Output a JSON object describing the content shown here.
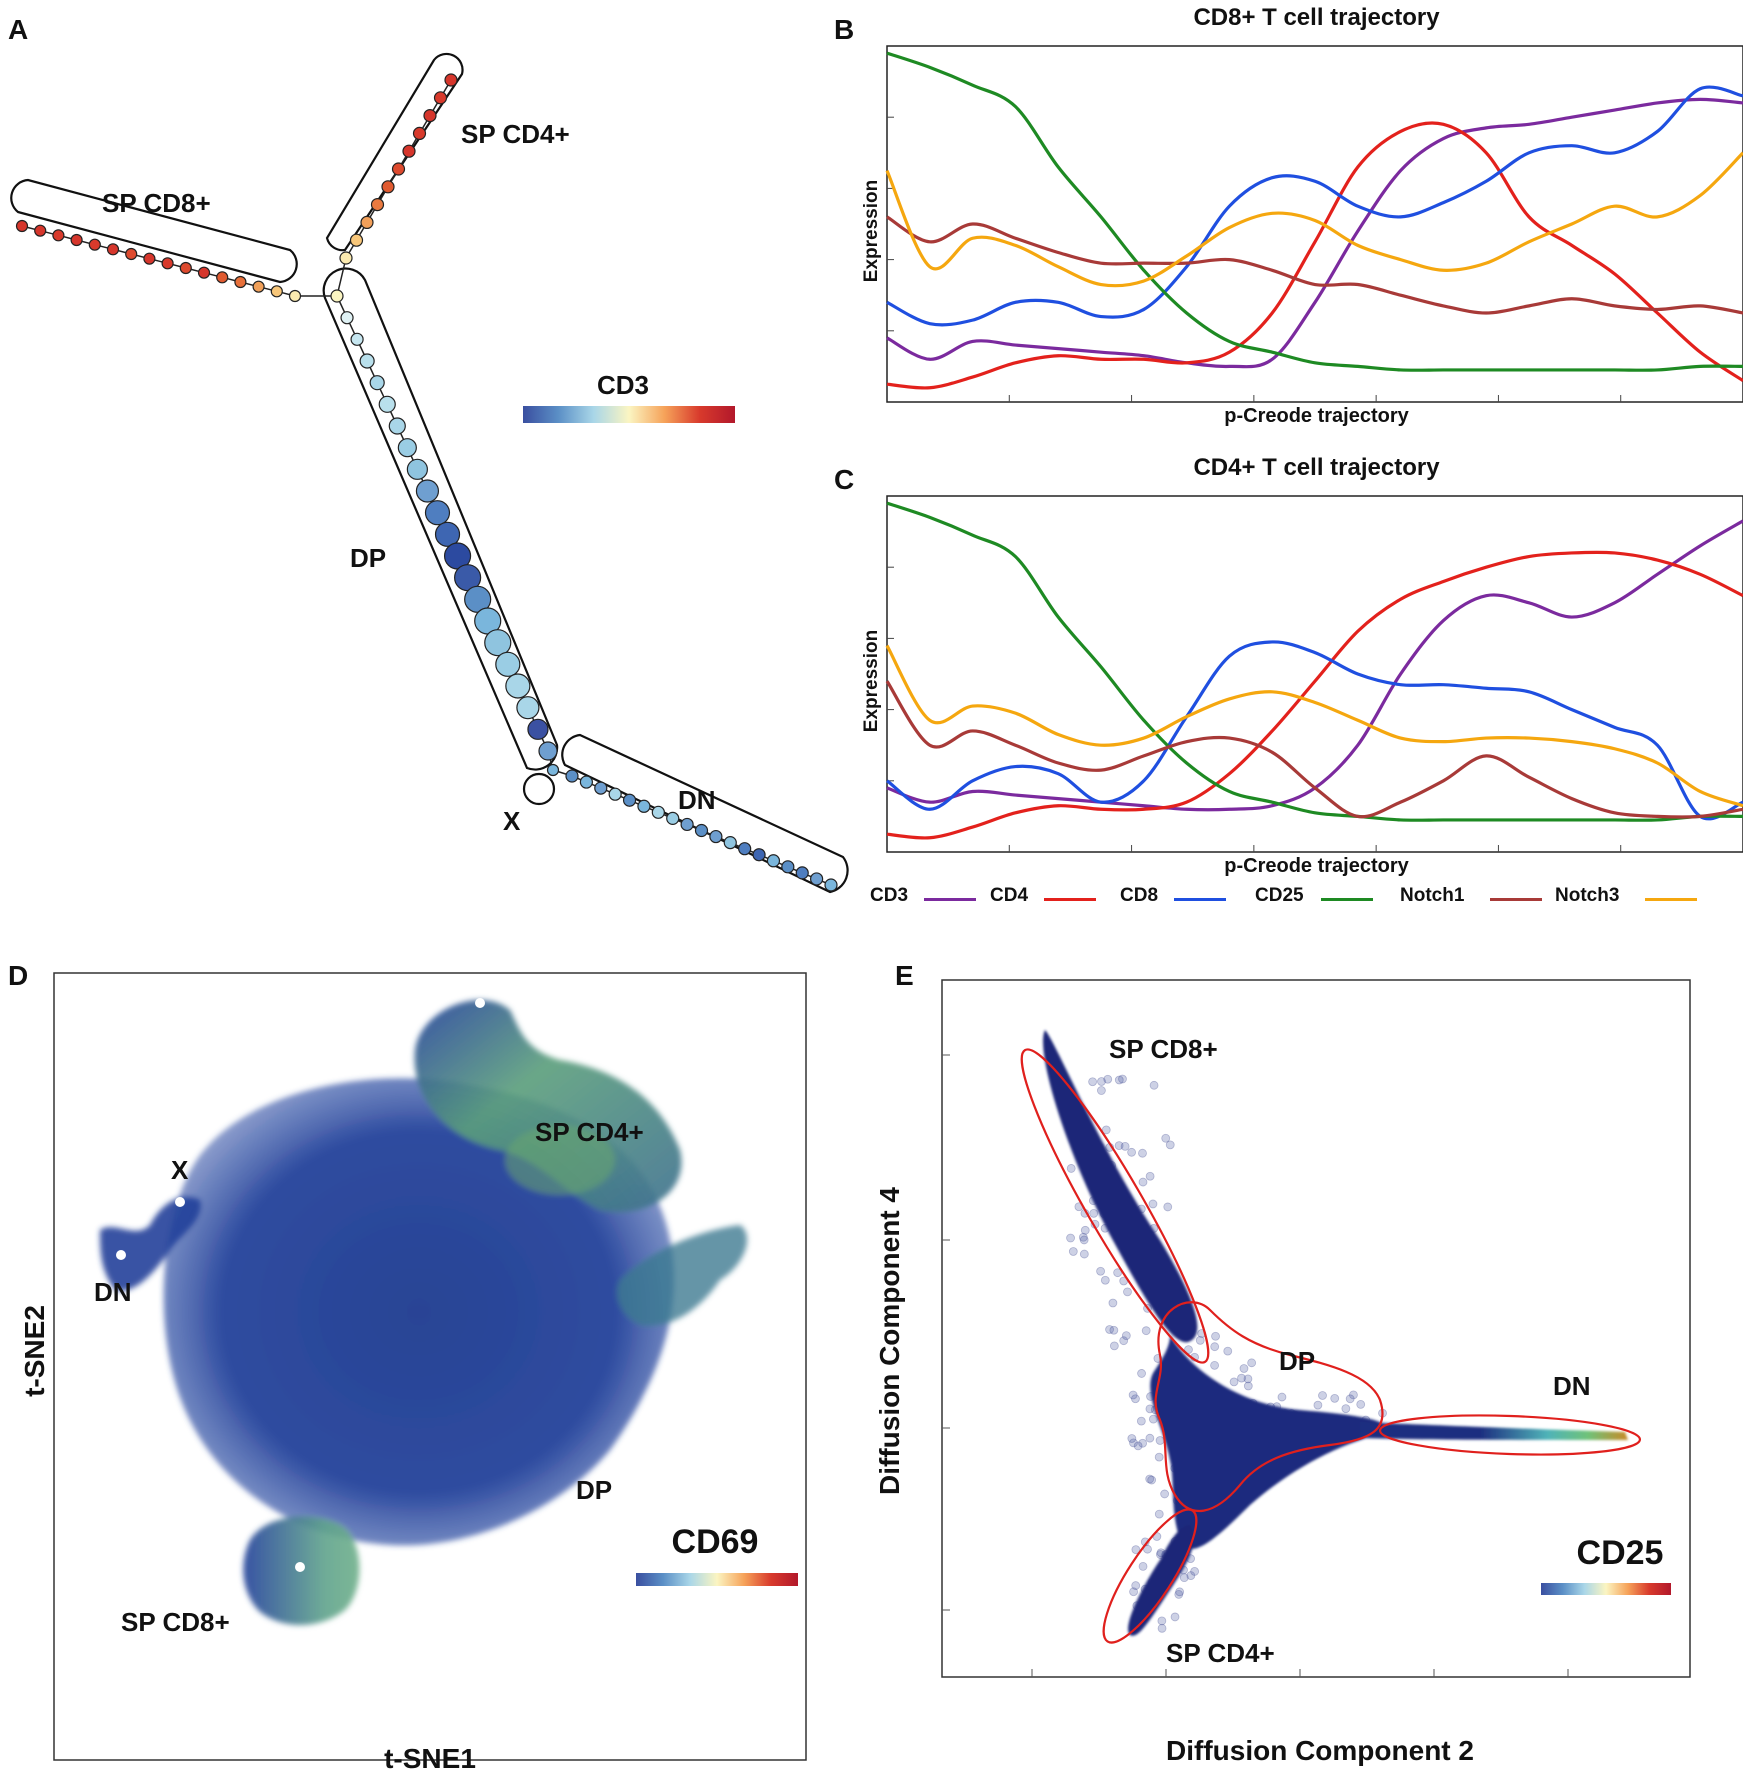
{
  "panels": {
    "A": {
      "letter": "A",
      "branch_labels": {
        "sp_cd8": "SP CD8+",
        "sp_cd4": "SP CD4+",
        "dp": "DP",
        "x": "X",
        "dn": "DN"
      },
      "colorbar_label": "CD3"
    },
    "B": {
      "letter": "B",
      "title": "CD8+ T cell trajectory",
      "xlabel": "p-Creode trajectory",
      "ylabel": "Expression"
    },
    "C": {
      "letter": "C",
      "title": "CD4+ T cell trajectory",
      "xlabel": "p-Creode trajectory",
      "ylabel": "Expression"
    },
    "D": {
      "letter": "D",
      "xlabel": "t-SNE1",
      "ylabel": "t-SNE2",
      "colorbar_label": "CD69",
      "cluster_labels": {
        "sp_cd4": "SP CD4+",
        "x": "X",
        "dn": "DN",
        "dp": "DP",
        "sp_cd8": "SP CD8+"
      }
    },
    "E": {
      "letter": "E",
      "xlabel": "Diffusion Component 2",
      "ylabel": "Diffusion Component 4",
      "colorbar_label": "CD25",
      "cluster_labels": {
        "sp_cd8": "SP CD8+",
        "dp": "DP",
        "dn": "DN",
        "sp_cd4": "SP CD4+"
      }
    }
  },
  "legend": [
    {
      "name": "CD3",
      "color": "#7b2a9e"
    },
    {
      "name": "CD4",
      "color": "#e3211c"
    },
    {
      "name": "CD8",
      "color": "#1f4fe0"
    },
    {
      "name": "CD25",
      "color": "#1e8a23"
    },
    {
      "name": "Notch1",
      "color": "#a83a38"
    },
    {
      "name": "Notch3",
      "color": "#f5a70f"
    }
  ],
  "colormap": [
    "#3a4fa0",
    "#5b8fc6",
    "#a9d6e8",
    "#fbf5c2",
    "#f6a35a",
    "#d83a2c",
    "#b2182b"
  ],
  "chart_data": [
    {
      "type": "line",
      "title": "CD8+ T cell trajectory",
      "xlabel": "p-Creode trajectory",
      "ylabel": "Expression",
      "ylim": [
        0,
        1
      ],
      "x": [
        0,
        0.05,
        0.1,
        0.15,
        0.2,
        0.25,
        0.3,
        0.35,
        0.4,
        0.45,
        0.5,
        0.55,
        0.6,
        0.65,
        0.7,
        0.75,
        0.8,
        0.85,
        0.9,
        0.95,
        1.0
      ],
      "series": [
        {
          "name": "CD3",
          "values": [
            0.18,
            0.12,
            0.17,
            0.16,
            0.15,
            0.14,
            0.13,
            0.11,
            0.1,
            0.12,
            0.28,
            0.48,
            0.65,
            0.74,
            0.77,
            0.78,
            0.8,
            0.82,
            0.84,
            0.85,
            0.84
          ]
        },
        {
          "name": "CD4",
          "values": [
            0.05,
            0.04,
            0.07,
            0.11,
            0.13,
            0.12,
            0.12,
            0.11,
            0.14,
            0.25,
            0.45,
            0.66,
            0.76,
            0.78,
            0.7,
            0.52,
            0.44,
            0.36,
            0.25,
            0.14,
            0.06
          ]
        },
        {
          "name": "CD8",
          "values": [
            0.28,
            0.22,
            0.23,
            0.28,
            0.28,
            0.24,
            0.26,
            0.38,
            0.55,
            0.63,
            0.62,
            0.55,
            0.52,
            0.56,
            0.62,
            0.7,
            0.72,
            0.7,
            0.76,
            0.88,
            0.86
          ]
        },
        {
          "name": "CD25",
          "values": [
            0.98,
            0.94,
            0.89,
            0.83,
            0.66,
            0.52,
            0.37,
            0.25,
            0.17,
            0.14,
            0.11,
            0.1,
            0.09,
            0.09,
            0.09,
            0.09,
            0.09,
            0.09,
            0.09,
            0.1,
            0.1
          ]
        },
        {
          "name": "Notch1",
          "values": [
            0.52,
            0.45,
            0.5,
            0.46,
            0.42,
            0.39,
            0.39,
            0.39,
            0.4,
            0.37,
            0.33,
            0.33,
            0.3,
            0.27,
            0.25,
            0.27,
            0.29,
            0.27,
            0.26,
            0.27,
            0.25
          ]
        },
        {
          "name": "Notch3",
          "values": [
            0.65,
            0.38,
            0.46,
            0.44,
            0.38,
            0.33,
            0.34,
            0.41,
            0.49,
            0.53,
            0.51,
            0.44,
            0.4,
            0.37,
            0.39,
            0.45,
            0.5,
            0.55,
            0.52,
            0.58,
            0.7
          ]
        }
      ]
    },
    {
      "type": "line",
      "title": "CD4+ T cell trajectory",
      "xlabel": "p-Creode trajectory",
      "ylabel": "Expression",
      "ylim": [
        0,
        1
      ],
      "x": [
        0,
        0.05,
        0.1,
        0.15,
        0.2,
        0.25,
        0.3,
        0.35,
        0.4,
        0.45,
        0.5,
        0.55,
        0.6,
        0.65,
        0.7,
        0.75,
        0.8,
        0.85,
        0.9,
        0.95,
        1.0
      ],
      "series": [
        {
          "name": "CD3",
          "values": [
            0.18,
            0.14,
            0.17,
            0.16,
            0.15,
            0.14,
            0.13,
            0.12,
            0.12,
            0.13,
            0.18,
            0.3,
            0.5,
            0.65,
            0.72,
            0.7,
            0.66,
            0.7,
            0.78,
            0.86,
            0.93
          ]
        },
        {
          "name": "CD4",
          "values": [
            0.05,
            0.04,
            0.07,
            0.11,
            0.13,
            0.12,
            0.12,
            0.14,
            0.22,
            0.34,
            0.48,
            0.62,
            0.71,
            0.76,
            0.8,
            0.83,
            0.84,
            0.84,
            0.82,
            0.78,
            0.72
          ]
        },
        {
          "name": "CD8",
          "values": [
            0.2,
            0.12,
            0.2,
            0.24,
            0.22,
            0.14,
            0.2,
            0.38,
            0.55,
            0.59,
            0.56,
            0.5,
            0.47,
            0.47,
            0.46,
            0.45,
            0.4,
            0.35,
            0.3,
            0.1,
            0.14
          ]
        },
        {
          "name": "CD25",
          "values": [
            0.98,
            0.94,
            0.89,
            0.83,
            0.66,
            0.52,
            0.37,
            0.25,
            0.17,
            0.14,
            0.11,
            0.1,
            0.09,
            0.09,
            0.09,
            0.09,
            0.09,
            0.09,
            0.09,
            0.1,
            0.1
          ]
        },
        {
          "name": "Notch1",
          "values": [
            0.48,
            0.3,
            0.34,
            0.3,
            0.25,
            0.23,
            0.27,
            0.31,
            0.32,
            0.28,
            0.18,
            0.1,
            0.14,
            0.2,
            0.27,
            0.21,
            0.15,
            0.11,
            0.1,
            0.1,
            0.12
          ]
        },
        {
          "name": "Notch3",
          "values": [
            0.58,
            0.37,
            0.41,
            0.39,
            0.33,
            0.3,
            0.32,
            0.38,
            0.43,
            0.45,
            0.42,
            0.37,
            0.32,
            0.31,
            0.32,
            0.32,
            0.31,
            0.29,
            0.25,
            0.17,
            0.13
          ]
        }
      ]
    },
    {
      "type": "scatter",
      "title": "",
      "xlabel": "t-SNE1",
      "ylabel": "t-SNE2",
      "colorbar": "CD69",
      "clusters": [
        "SP CD4+",
        "X",
        "DN",
        "DP",
        "SP CD8+"
      ]
    },
    {
      "type": "scatter",
      "title": "",
      "xlabel": "Diffusion Component 2",
      "ylabel": "Diffusion Component 4",
      "colorbar": "CD25",
      "clusters": [
        "SP CD8+",
        "DP",
        "DN",
        "SP CD4+"
      ]
    }
  ]
}
